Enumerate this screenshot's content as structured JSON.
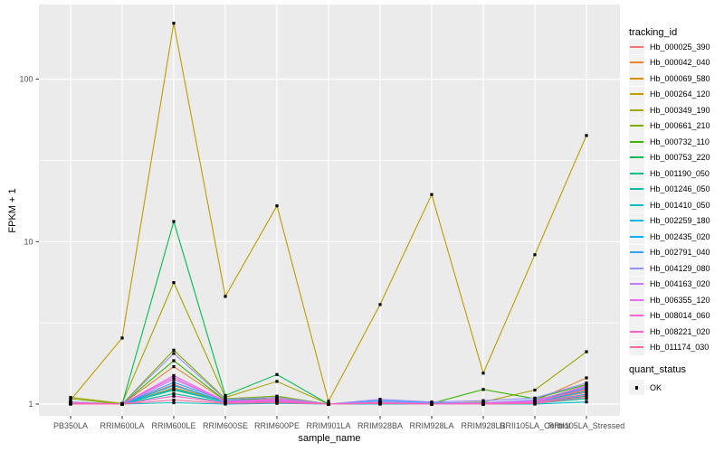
{
  "figure": {
    "background": "#FFFFFF",
    "panel_background": "#EBEBEB",
    "grid_color": "#FFFFFF",
    "axis_text_color": "#4D4D4D",
    "tick_color": "#333333",
    "point_color": "#000000",
    "legend_key_background": "#F2F2F2"
  },
  "axes": {
    "x_title": "sample_name",
    "y_title": "FPKM + 1",
    "y_tick_labels": [
      "1",
      "10",
      "100"
    ]
  },
  "legend": {
    "tracking_title": "tracking_id",
    "quant_title": "quant_status",
    "quant_items": [
      {
        "label": "OK"
      }
    ]
  },
  "chart_data": {
    "type": "line",
    "title": "",
    "xlabel": "sample_name",
    "ylabel": "FPKM + 1",
    "y_scale": "log10",
    "ylim": [
      0.85,
      290
    ],
    "y_major_ticks": [
      1,
      10,
      100
    ],
    "y_minor_gridlines": [
      3.162,
      31.62
    ],
    "grid": true,
    "legend_position": "right",
    "point_shape": "square",
    "point_color": "#000000",
    "categories": [
      "PB350LA",
      "RRIM600LA",
      "RRIM600LE",
      "RRIM600SE",
      "RRIM600PE",
      "RRIM901LA",
      "RRIM928BA",
      "RRIM928LA",
      "RRIM928LB",
      "RRII105LA_Control",
      "RRII105LA_Stressed"
    ],
    "series": [
      {
        "name": "Hb_000025_390",
        "color": "#F8766D",
        "values": [
          1.02,
          1.0,
          1.32,
          1.03,
          1.05,
          1.0,
          1.01,
          1.0,
          1.0,
          1.02,
          1.18
        ]
      },
      {
        "name": "Hb_000042_040",
        "color": "#EA8331",
        "values": [
          1.03,
          1.0,
          1.7,
          1.05,
          1.08,
          1.0,
          1.02,
          1.0,
          1.01,
          1.05,
          1.45
        ]
      },
      {
        "name": "Hb_000069_580",
        "color": "#D89000",
        "values": [
          1.02,
          1.0,
          1.26,
          1.04,
          1.06,
          1.0,
          1.01,
          1.0,
          1.0,
          1.03,
          1.22
        ]
      },
      {
        "name": "Hb_000264_120",
        "color": "#C09B00",
        "values": [
          1.06,
          2.55,
          221,
          4.6,
          16.6,
          1.04,
          4.1,
          19.5,
          1.55,
          8.3,
          45
        ]
      },
      {
        "name": "Hb_000349_190",
        "color": "#A3A500",
        "values": [
          1.1,
          1.01,
          5.6,
          1.1,
          1.38,
          1.0,
          1.02,
          1.01,
          1.03,
          1.22,
          2.1
        ]
      },
      {
        "name": "Hb_000661_210",
        "color": "#7CAE00",
        "values": [
          1.08,
          1.0,
          2.15,
          1.08,
          1.12,
          1.0,
          1.01,
          1.0,
          1.0,
          1.04,
          1.3
        ]
      },
      {
        "name": "Hb_000732_110",
        "color": "#39B600",
        "values": [
          1.01,
          1.0,
          1.85,
          1.05,
          1.1,
          1.0,
          1.02,
          1.01,
          1.23,
          1.08,
          1.32
        ]
      },
      {
        "name": "Hb_000753_220",
        "color": "#00BB4E",
        "values": [
          1.02,
          1.0,
          13.3,
          1.13,
          1.52,
          1.0,
          1.02,
          1.0,
          1.01,
          1.05,
          1.25
        ]
      },
      {
        "name": "Hb_001190_050",
        "color": "#00BF7D",
        "values": [
          1.01,
          1.0,
          1.22,
          1.03,
          1.04,
          1.0,
          1.01,
          1.0,
          1.0,
          1.02,
          1.12
        ]
      },
      {
        "name": "Hb_001246_050",
        "color": "#00C1A3",
        "values": [
          1.0,
          1.0,
          1.16,
          1.02,
          1.03,
          1.0,
          1.0,
          1.0,
          1.0,
          1.01,
          1.08
        ]
      },
      {
        "name": "Hb_001410_050",
        "color": "#00BFC4",
        "values": [
          1.0,
          1.0,
          1.02,
          1.0,
          1.01,
          1.0,
          1.0,
          1.0,
          1.0,
          1.0,
          1.03
        ]
      },
      {
        "name": "Hb_002259_180",
        "color": "#00BAE5",
        "values": [
          1.01,
          1.0,
          1.24,
          1.03,
          1.05,
          1.0,
          1.02,
          1.0,
          1.0,
          1.02,
          1.15
        ]
      },
      {
        "name": "Hb_002435_020",
        "color": "#00B0F6",
        "values": [
          1.01,
          1.0,
          1.3,
          1.04,
          1.06,
          1.0,
          1.03,
          1.01,
          1.0,
          1.03,
          1.2
        ]
      },
      {
        "name": "Hb_002791_040",
        "color": "#35A2FF",
        "values": [
          1.02,
          1.0,
          1.36,
          1.05,
          1.07,
          1.0,
          1.05,
          1.02,
          1.02,
          1.06,
          1.26
        ]
      },
      {
        "name": "Hb_004129_080",
        "color": "#9590FF",
        "values": [
          1.03,
          1.0,
          2.05,
          1.07,
          1.1,
          1.0,
          1.07,
          1.03,
          1.05,
          1.09,
          1.35
        ]
      },
      {
        "name": "Hb_004163_020",
        "color": "#C77CFF",
        "values": [
          1.02,
          1.0,
          1.42,
          1.04,
          1.06,
          1.0,
          1.03,
          1.01,
          1.02,
          1.05,
          1.28
        ]
      },
      {
        "name": "Hb_006355_120",
        "color": "#E76BF3",
        "values": [
          1.02,
          1.0,
          1.5,
          1.04,
          1.07,
          1.0,
          1.02,
          1.0,
          1.01,
          1.04,
          1.3
        ]
      },
      {
        "name": "Hb_008014_060",
        "color": "#FA62DB",
        "values": [
          1.01,
          1.0,
          1.46,
          1.03,
          1.05,
          1.0,
          1.02,
          1.0,
          1.0,
          1.03,
          1.24
        ]
      },
      {
        "name": "Hb_008221_020",
        "color": "#FF61C9",
        "values": [
          1.01,
          1.0,
          1.12,
          1.02,
          1.03,
          1.0,
          1.01,
          1.0,
          1.0,
          1.02,
          1.14
        ]
      },
      {
        "name": "Hb_011174_030",
        "color": "#FF689F",
        "values": [
          1.0,
          1.0,
          1.06,
          1.01,
          1.02,
          1.0,
          1.01,
          1.0,
          1.0,
          1.01,
          1.1
        ]
      }
    ]
  }
}
